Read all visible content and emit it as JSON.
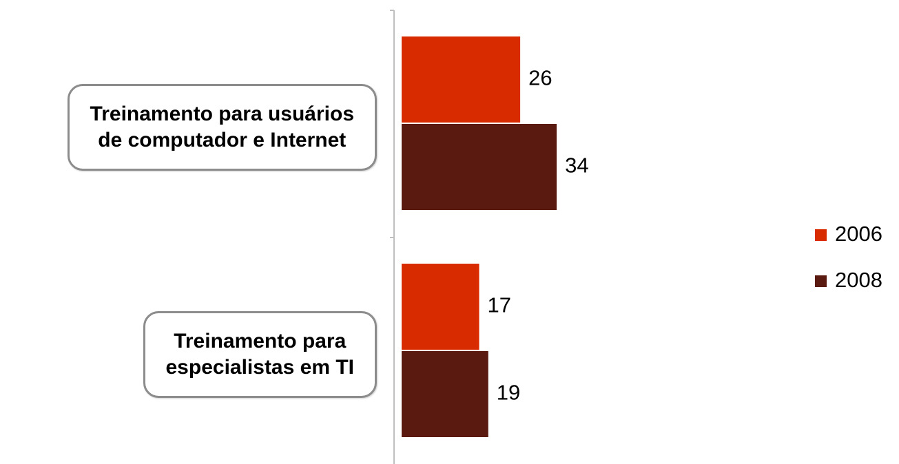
{
  "chart_data": {
    "type": "hbar",
    "categories": [
      "Treinamento para usuários\nde computador e Internet",
      "Treinamento para\nespecialistas em TI"
    ],
    "series": [
      {
        "name": "2006",
        "color": "#d92b00",
        "values": [
          26,
          17
        ]
      },
      {
        "name": "2008",
        "color": "#5a1a10",
        "values": [
          34,
          19
        ]
      }
    ],
    "legend": "right"
  }
}
